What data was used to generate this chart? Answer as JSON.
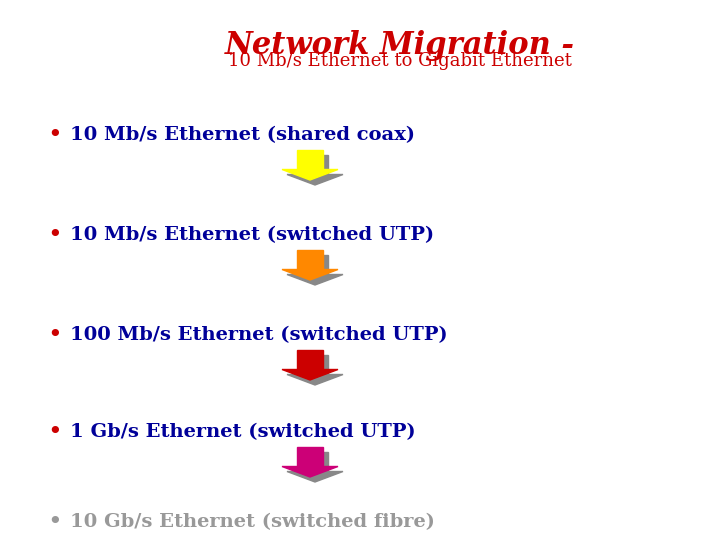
{
  "title_line1": "Network Migration -",
  "title_line2": "10 Mb/s Ethernet to Gigabit Ethernet",
  "title_color": "#cc0000",
  "subtitle_color": "#cc0000",
  "bullet_color": "#000099",
  "last_bullet_color": "#999999",
  "bullet_dot_color": "#cc0000",
  "background_color": "#ffffff",
  "bullets": [
    "10 Mb/s Ethernet (shared coax)",
    "10 Mb/s Ethernet (switched UTP)",
    "100 Mb/s Ethernet (switched UTP)",
    "1 Gb/s Ethernet (switched UTP)",
    "10 Gb/s Ethernet (switched fibre)"
  ],
  "arrow_colors": [
    "#ffff00",
    "#ff8800",
    "#cc0000",
    "#cc0077"
  ],
  "shadow_color": "#888888",
  "figwidth": 7.2,
  "figheight": 5.4,
  "dpi": 100
}
